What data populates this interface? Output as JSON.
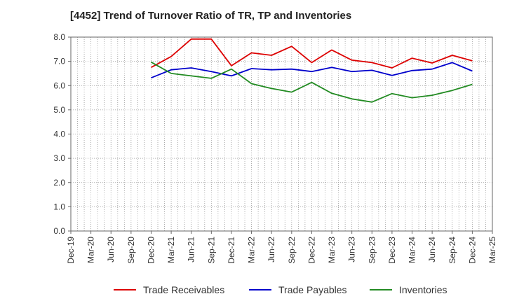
{
  "chart_data": {
    "type": "line",
    "title": "[4452]  Trend of Turnover Ratio of TR, TP and Inventories",
    "xlabel": "",
    "ylabel": "",
    "ylim": [
      0,
      8
    ],
    "y_ticks": [
      "0.0",
      "1.0",
      "2.0",
      "3.0",
      "4.0",
      "5.0",
      "6.0",
      "7.0",
      "8.0"
    ],
    "x_ticks": [
      "Dec-19",
      "Mar-20",
      "Jun-20",
      "Sep-20",
      "Dec-20",
      "Mar-21",
      "Jun-21",
      "Sep-21",
      "Dec-21",
      "Mar-22",
      "Jun-22",
      "Sep-22",
      "Dec-22",
      "Mar-23",
      "Jun-23",
      "Sep-23",
      "Dec-23",
      "Mar-24",
      "Jun-24",
      "Sep-24",
      "Dec-24",
      "Mar-25"
    ],
    "categories": [
      "Dec-20",
      "Mar-21",
      "Jun-21",
      "Sep-21",
      "Dec-21",
      "Mar-22",
      "Jun-22",
      "Sep-22",
      "Dec-22",
      "Mar-23",
      "Jun-23",
      "Sep-23",
      "Dec-23",
      "Mar-24",
      "Jun-24",
      "Sep-24",
      "Dec-24"
    ],
    "grid": true,
    "legend_position": "bottom",
    "series": [
      {
        "name": "Trade Receivables",
        "color": "#dd0000",
        "values": [
          6.75,
          7.2,
          7.92,
          7.92,
          6.82,
          7.35,
          7.25,
          7.62,
          6.95,
          7.47,
          7.05,
          6.95,
          6.73,
          7.13,
          6.93,
          7.25,
          7.02
        ]
      },
      {
        "name": "Trade Payables",
        "color": "#0000cc",
        "values": [
          6.32,
          6.65,
          6.73,
          6.58,
          6.4,
          6.7,
          6.65,
          6.68,
          6.58,
          6.75,
          6.58,
          6.63,
          6.42,
          6.62,
          6.68,
          6.95,
          6.6
        ]
      },
      {
        "name": "Inventories",
        "color": "#228b22",
        "values": [
          6.97,
          6.5,
          6.4,
          6.3,
          6.68,
          6.08,
          5.88,
          5.73,
          6.13,
          5.68,
          5.45,
          5.32,
          5.67,
          5.5,
          5.6,
          5.8,
          6.05
        ]
      }
    ]
  }
}
